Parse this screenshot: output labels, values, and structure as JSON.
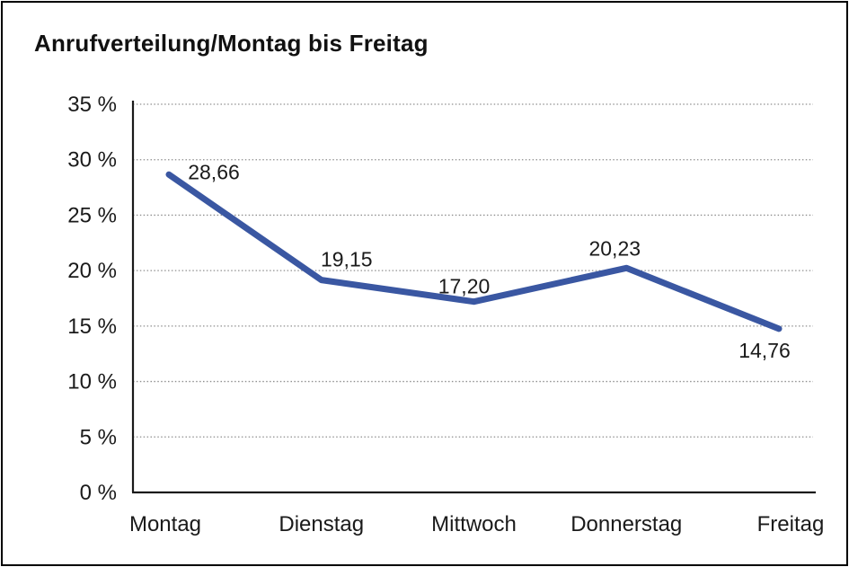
{
  "chart_data": {
    "type": "line",
    "title": "Anrufverteilung/Montag bis Freitag",
    "categories": [
      "Montag",
      "Dienstag",
      "Mittwoch",
      "Donnerstag",
      "Freitag"
    ],
    "values": [
      28.66,
      19.15,
      17.2,
      20.23,
      14.76
    ],
    "value_labels": [
      "28,66",
      "19,15",
      "17,20",
      "20,23",
      "14,76"
    ],
    "xlabel": "",
    "ylabel": "",
    "ylim": [
      0,
      35
    ],
    "ytick_step": 5,
    "ytick_labels": [
      "0 %",
      "5 %",
      "10 %",
      "15 %",
      "20 %",
      "25 %",
      "30 %",
      "35 %"
    ],
    "grid": "horizontal-dotted",
    "legend": "none",
    "colors": {
      "series_line": "#3A57A2",
      "axis": "#1a1a1a",
      "gridline": "#8f8f8f",
      "text": "#1a1a1a"
    }
  }
}
